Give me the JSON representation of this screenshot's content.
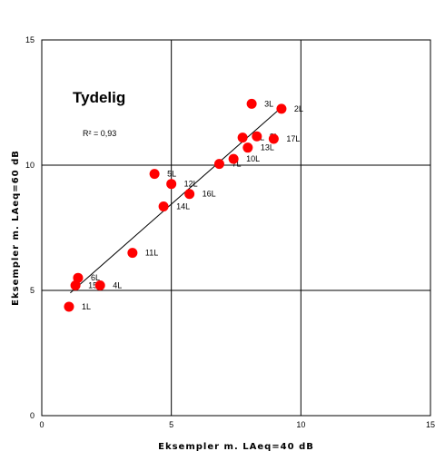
{
  "chart_data": {
    "type": "scatter",
    "title": "Tydelig",
    "annotation": "R² = 0,93",
    "xlabel": "Eksempler m. LAeq=40 dB",
    "ylabel": "Eksempler m. LAeq=60 dB",
    "xlim": [
      0,
      15
    ],
    "ylim": [
      0,
      15
    ],
    "xticks": [
      "0",
      "5",
      "10",
      "15"
    ],
    "yticks": [
      "0",
      "5",
      "10",
      "15"
    ],
    "grid": true,
    "marker_color": "#ff0000",
    "points": [
      {
        "label": "1L",
        "x": 1.05,
        "y": 4.35
      },
      {
        "label": "15L",
        "x": 1.3,
        "y": 5.2
      },
      {
        "label": "6L",
        "x": 1.4,
        "y": 5.5
      },
      {
        "label": "4L",
        "x": 2.25,
        "y": 5.2
      },
      {
        "label": "11L",
        "x": 3.5,
        "y": 6.5
      },
      {
        "label": "14L",
        "x": 4.7,
        "y": 8.35
      },
      {
        "label": "5L",
        "x": 4.35,
        "y": 9.65
      },
      {
        "label": "12L",
        "x": 5.0,
        "y": 9.25
      },
      {
        "label": "16L",
        "x": 5.7,
        "y": 8.85
      },
      {
        "label": "7L",
        "x": 6.85,
        "y": 10.05
      },
      {
        "label": "10L",
        "x": 7.4,
        "y": 10.25
      },
      {
        "label": "13L",
        "x": 7.95,
        "y": 10.7
      },
      {
        "label": "9L",
        "x": 7.75,
        "y": 11.1
      },
      {
        "label": "8L",
        "x": 8.3,
        "y": 11.15
      },
      {
        "label": "17L",
        "x": 8.95,
        "y": 11.05
      },
      {
        "label": "3L",
        "x": 8.1,
        "y": 12.45
      },
      {
        "label": "2L",
        "x": 9.25,
        "y": 12.25
      }
    ],
    "trendline": {
      "x": [
        1.1,
        9.3
      ],
      "y": [
        4.9,
        12.35
      ]
    }
  }
}
